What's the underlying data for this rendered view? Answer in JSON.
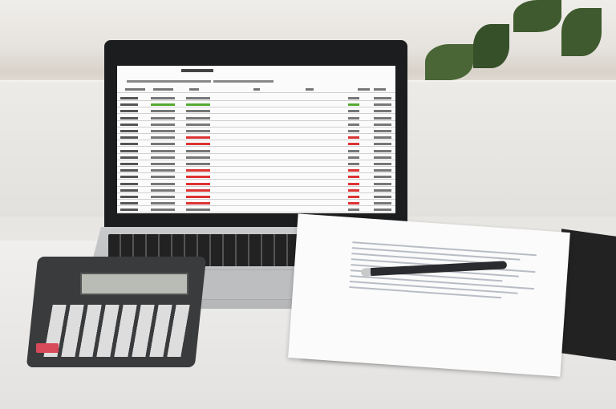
{
  "scene": {
    "description_items": [
      "laptop",
      "spreadsheet",
      "calculator",
      "papers",
      "pen",
      "clipboard",
      "plant"
    ],
    "colors": {
      "bezel": "#1c1d1f",
      "laptop_body": "#c0c1c3",
      "calculator": "#3a3b3d",
      "calc_red_key": "#d84a5a",
      "sheet_red": "#d33",
      "sheet_green": "#5a3"
    },
    "spreadsheet": {
      "row_count": 18,
      "highlight_rows": {
        "green": [
          1
        ],
        "red": [
          6,
          7,
          11,
          12,
          13,
          14,
          15,
          16
        ]
      }
    }
  }
}
